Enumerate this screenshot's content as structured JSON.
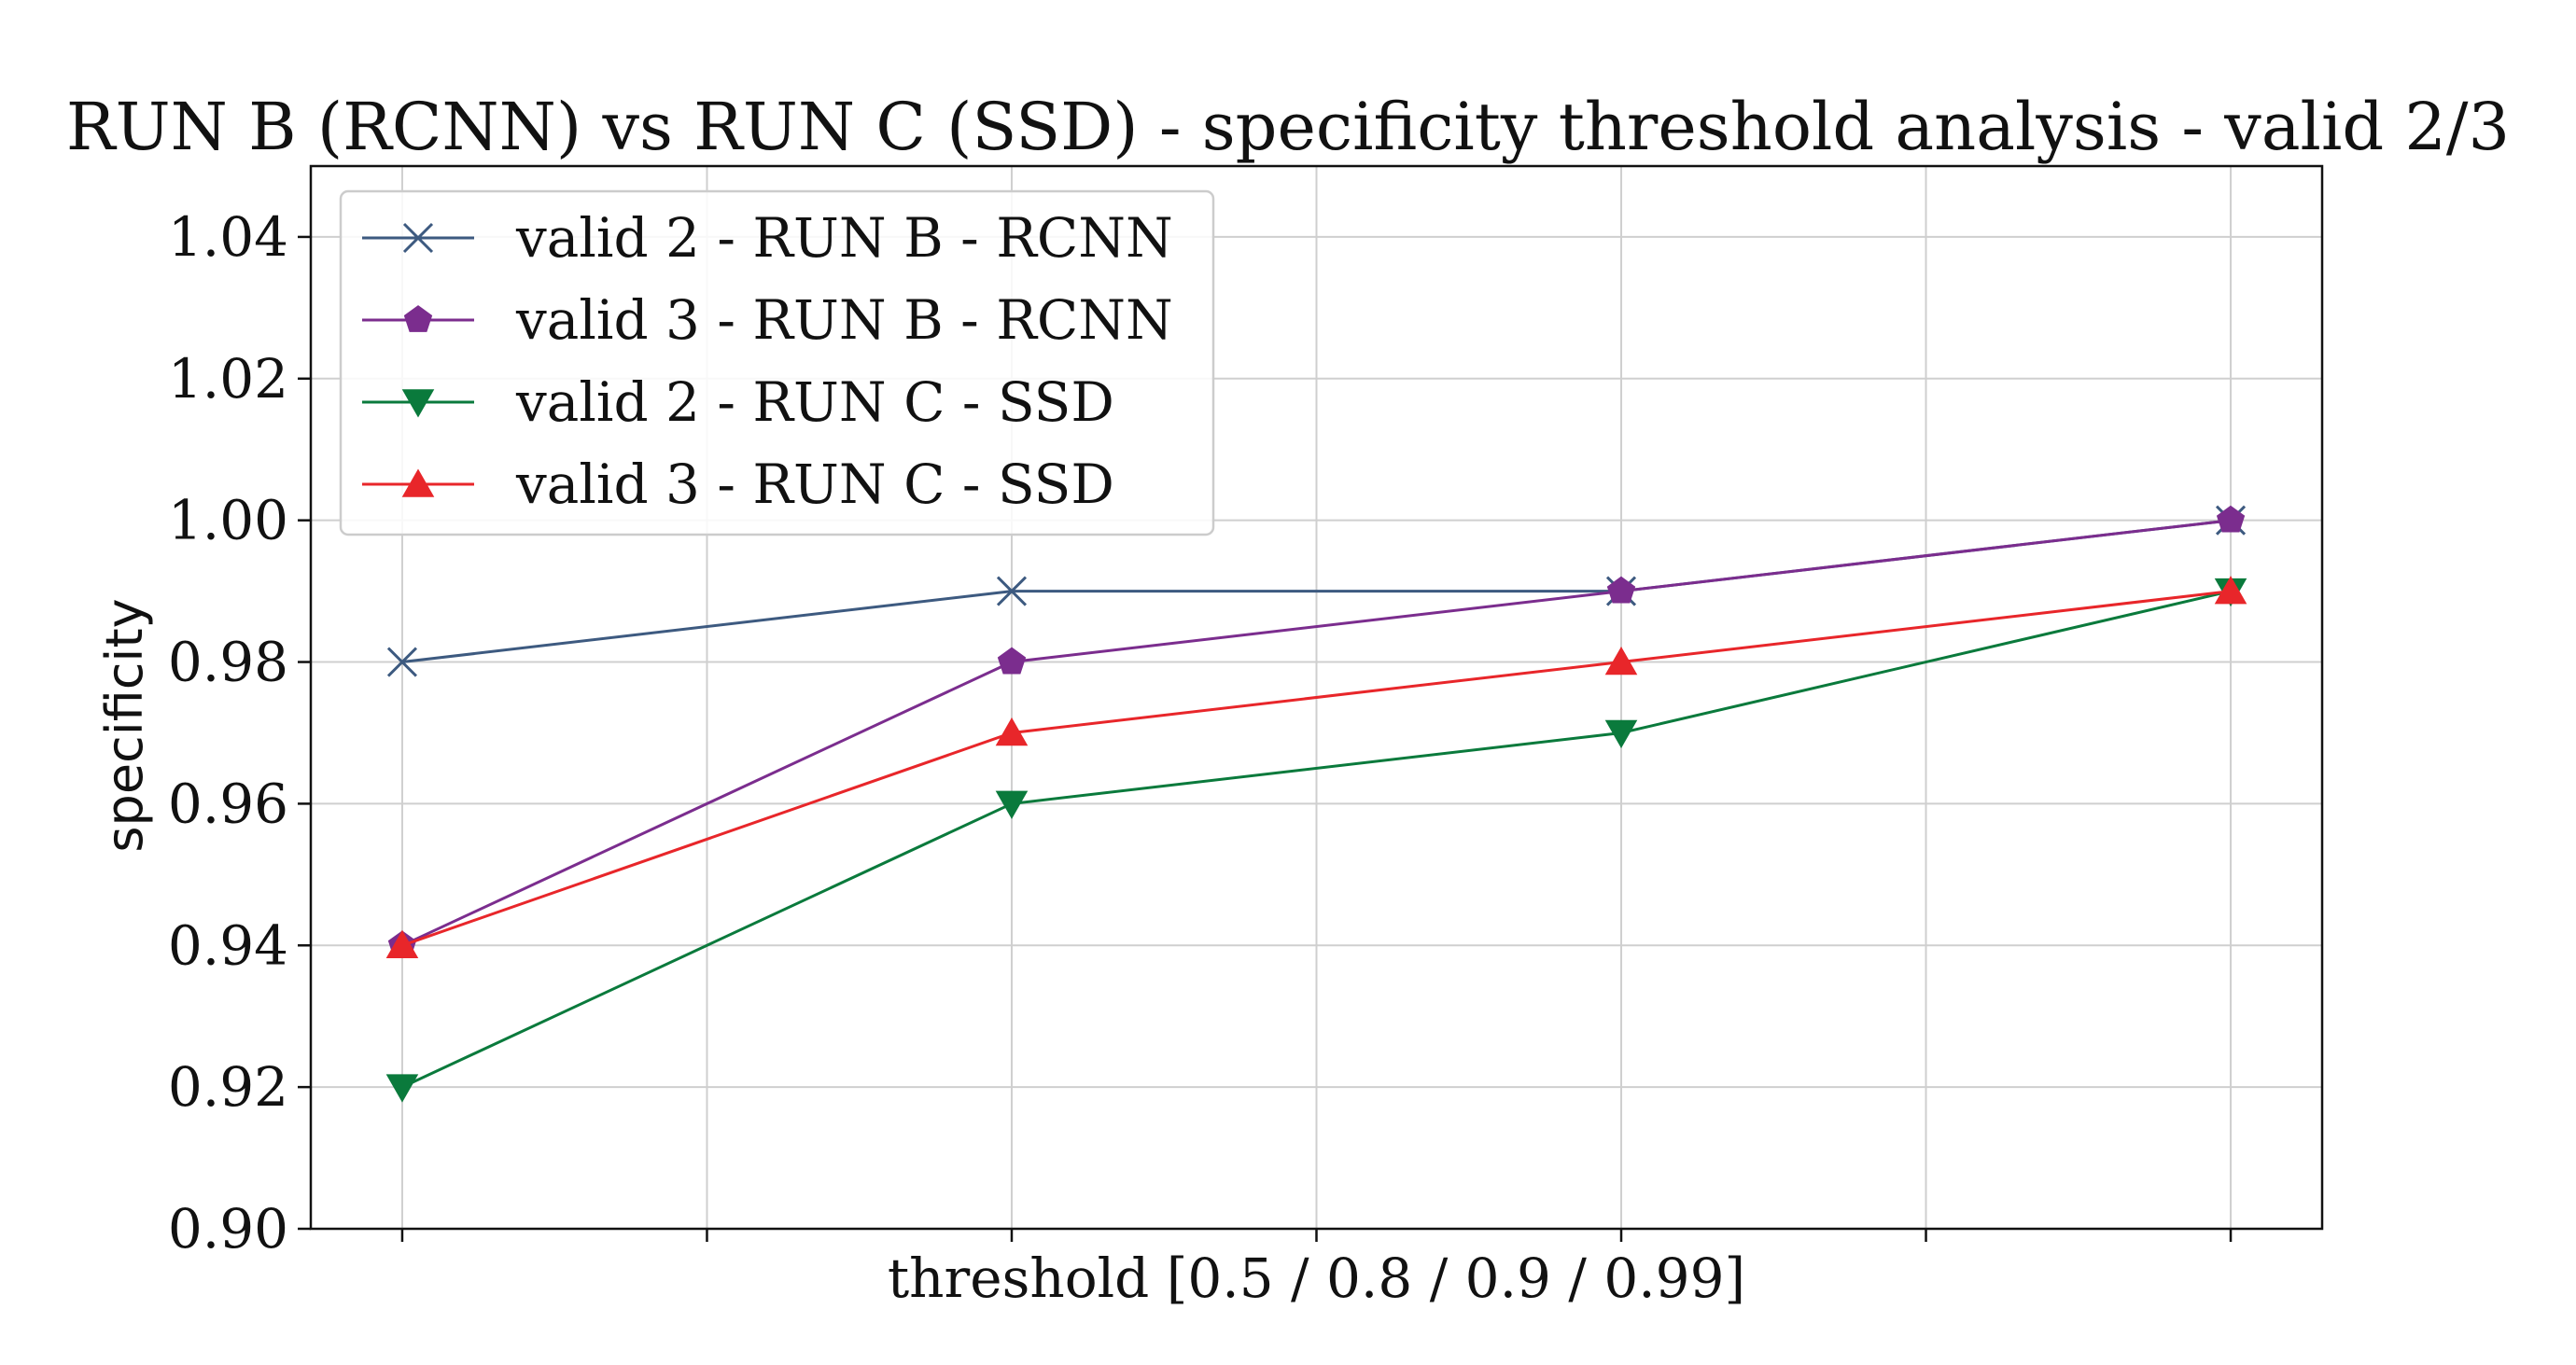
{
  "chart_data": {
    "type": "line",
    "title": "RUN B (RCNN) vs RUN C (SSD) - specificity threshold analysis - valid 2/3",
    "xlabel": "threshold [0.5 / 0.8 / 0.9 / 0.99]",
    "ylabel": "specificity",
    "x": [
      0,
      1,
      2,
      3
    ],
    "xlim": [
      -0.15,
      3.15
    ],
    "xticks": [
      0,
      0.5,
      1,
      1.5,
      2,
      2.5,
      3
    ],
    "ylim": [
      0.9,
      1.05
    ],
    "yticks": [
      "0.90",
      "0.92",
      "0.94",
      "0.96",
      "0.98",
      "1.00",
      "1.02",
      "1.04"
    ],
    "grid": true,
    "legend_position": "top-left",
    "series": [
      {
        "name": "valid 2 - RUN B - RCNN",
        "values": [
          0.98,
          0.99,
          0.99,
          1.0
        ],
        "color": "#3d5a80",
        "marker": "x"
      },
      {
        "name": "valid 3 - RUN B - RCNN",
        "values": [
          0.94,
          0.98,
          0.99,
          1.0
        ],
        "color": "#7b2d8e",
        "marker": "pentagon"
      },
      {
        "name": "valid 2 - RUN C - SSD",
        "values": [
          0.92,
          0.96,
          0.97,
          0.99
        ],
        "color": "#0a7a3c",
        "marker": "triangle-down"
      },
      {
        "name": "valid 3 - RUN C - SSD",
        "values": [
          0.94,
          0.97,
          0.98,
          0.99
        ],
        "color": "#e8262a",
        "marker": "triangle-up"
      }
    ]
  }
}
